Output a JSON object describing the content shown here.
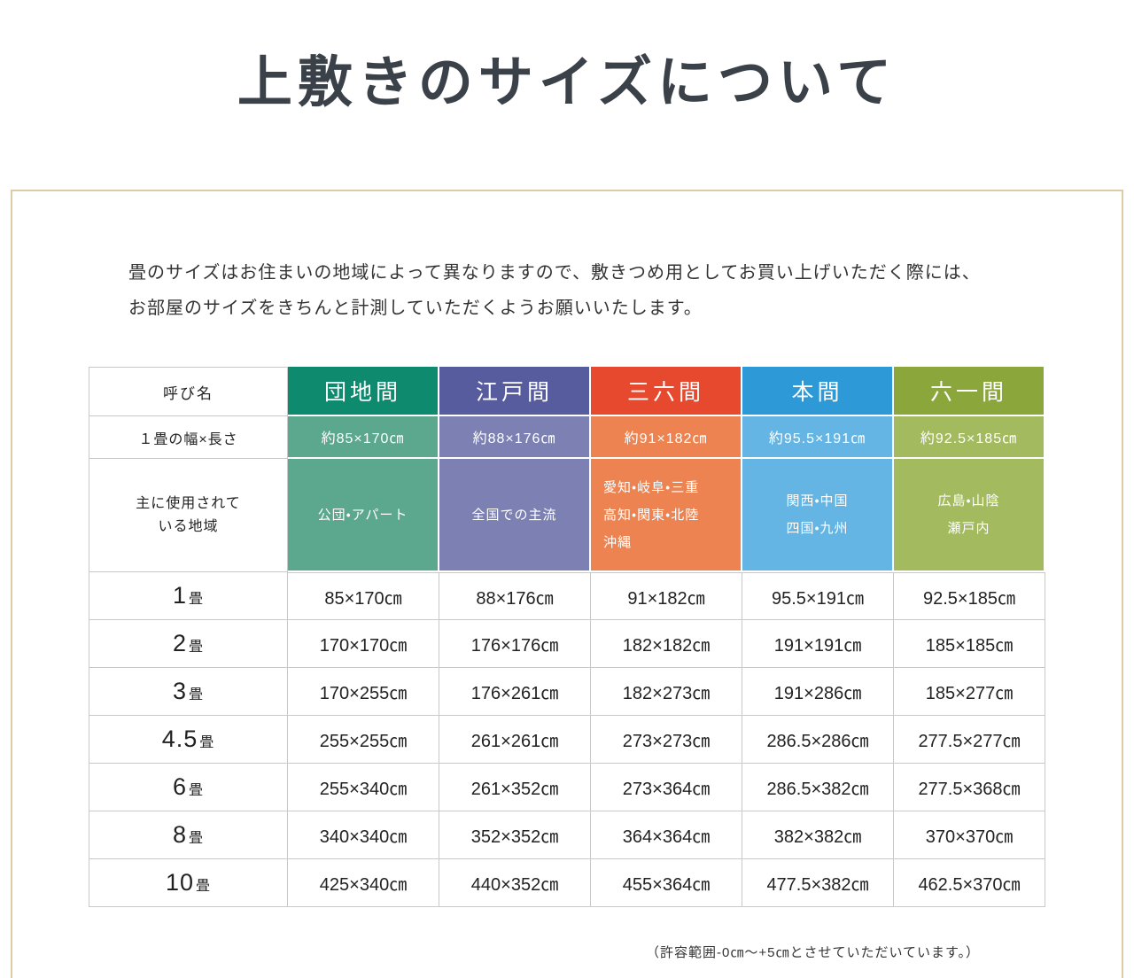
{
  "title": "上敷きのサイズについて",
  "intro": {
    "line1": "畳のサイズはお住まいの地域によって異なりますので、敷きつめ用としてお買い上げいただく際には、",
    "line2": "お部屋のサイズをきちんと計測していただくようお願いいたします。"
  },
  "footnote": "（許容範囲-0㎝〜+5㎝とさせていただいています。）",
  "table": {
    "corner_label": "呼び名",
    "size_row_label": "１畳の幅×長さ",
    "region_row_label": "主に使用されて\nいる地域",
    "columns": [
      {
        "label": "団地間",
        "header_color": "#0e8a6f",
        "body_color": "#5ba88e",
        "size": "約85×170㎝",
        "region": "公団・アパート"
      },
      {
        "label": "江戸間",
        "header_color": "#575c9f",
        "body_color": "#7c80b3",
        "size": "約88×176㎝",
        "region": "全国での主流"
      },
      {
        "label": "三六間",
        "header_color": "#e6492e",
        "body_color": "#ee8352",
        "size": "約91×182㎝",
        "region": "愛知・岐阜・三重\n高知・関東・北陸\n沖縄"
      },
      {
        "label": "本間",
        "header_color": "#2d9ad7",
        "body_color": "#64b5e3",
        "size": "約95.5×191㎝",
        "region": "関西・中国\n四国・九州"
      },
      {
        "label": "六一間",
        "header_color": "#8ba73c",
        "body_color": "#a3ba5e",
        "size": "約92.5×185㎝",
        "region": "広島・山陰\n瀬戸内"
      }
    ],
    "rows": [
      {
        "num": "1",
        "unit": "畳",
        "values": [
          "85×170㎝",
          "88×176㎝",
          "91×182㎝",
          "95.5×191㎝",
          "92.5×185㎝"
        ]
      },
      {
        "num": "2",
        "unit": "畳",
        "values": [
          "170×170㎝",
          "176×176㎝",
          "182×182㎝",
          "191×191㎝",
          "185×185㎝"
        ]
      },
      {
        "num": "3",
        "unit": "畳",
        "values": [
          "170×255㎝",
          "176×261㎝",
          "182×273㎝",
          "191×286㎝",
          "185×277㎝"
        ]
      },
      {
        "num": "4.5",
        "unit": "畳",
        "values": [
          "255×255㎝",
          "261×261㎝",
          "273×273㎝",
          "286.5×286㎝",
          "277.5×277㎝"
        ]
      },
      {
        "num": "6",
        "unit": "畳",
        "values": [
          "255×340㎝",
          "261×352㎝",
          "273×364㎝",
          "286.5×382㎝",
          "277.5×368㎝"
        ]
      },
      {
        "num": "8",
        "unit": "畳",
        "values": [
          "340×340㎝",
          "352×352㎝",
          "364×364㎝",
          "382×382㎝",
          "370×370㎝"
        ]
      },
      {
        "num": "10",
        "unit": "畳",
        "values": [
          "425×340㎝",
          "440×352㎝",
          "455×364㎝",
          "477.5×382㎝",
          "462.5×370㎝"
        ]
      }
    ]
  }
}
